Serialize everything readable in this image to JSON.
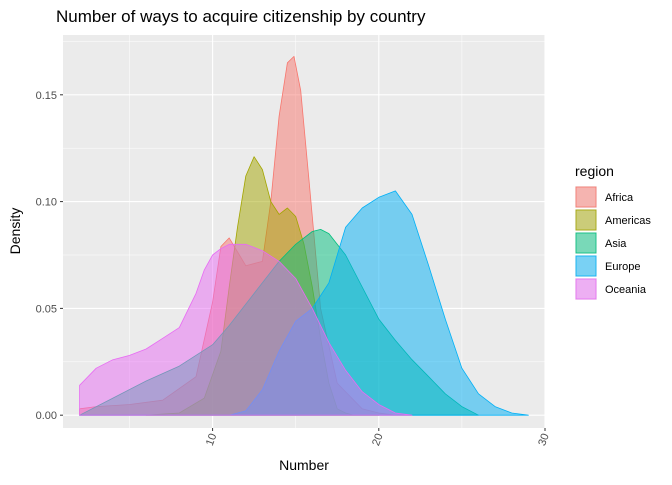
{
  "chart_data": {
    "type": "area",
    "subtype": "density",
    "title": "Number of ways to acquire citizenship by country",
    "xlabel": "Number",
    "ylabel": "Density",
    "xlim": [
      1,
      30
    ],
    "ylim": [
      -0.006,
      0.178
    ],
    "x_ticks": [
      10,
      20,
      30
    ],
    "x_tick_labels": [
      "10",
      "20",
      "30"
    ],
    "y_ticks": [
      0.0,
      0.05,
      0.1,
      0.15
    ],
    "y_tick_labels": [
      "0.00",
      "0.05",
      "0.10",
      "0.15"
    ],
    "grid": true,
    "legend": {
      "title": "region",
      "position": "right"
    },
    "series": [
      {
        "name": "Africa",
        "color": "#F8766D",
        "x": [
          2,
          3,
          5,
          7,
          9,
          10,
          10.5,
          11,
          12,
          13,
          13.5,
          14,
          14.5,
          14.9,
          15.3,
          15.8,
          16.5,
          17.5,
          19,
          20,
          21,
          22
        ],
        "y": [
          0.003,
          0.004,
          0.005,
          0.007,
          0.018,
          0.053,
          0.079,
          0.083,
          0.07,
          0.072,
          0.1,
          0.14,
          0.165,
          0.168,
          0.152,
          0.11,
          0.05,
          0.015,
          0.003,
          0.001,
          0.0,
          0.0
        ]
      },
      {
        "name": "Americas",
        "color": "#A3A500",
        "x": [
          6,
          8,
          9.5,
          10.5,
          11,
          11.5,
          12,
          12.5,
          13,
          13.5,
          14,
          14.5,
          15,
          15.5,
          16,
          16.5,
          17,
          17.5,
          18,
          18.5,
          19,
          20
        ],
        "y": [
          0.0,
          0.001,
          0.008,
          0.03,
          0.06,
          0.088,
          0.112,
          0.121,
          0.115,
          0.1,
          0.094,
          0.097,
          0.093,
          0.08,
          0.06,
          0.036,
          0.015,
          0.003,
          0.001,
          0.0,
          0.0,
          0.0
        ]
      },
      {
        "name": "Asia",
        "color": "#00BF7D",
        "x": [
          2,
          4,
          6,
          8,
          10,
          11,
          12,
          13,
          14,
          15,
          16,
          16.5,
          17,
          18,
          19,
          20,
          21,
          22,
          23,
          24,
          25,
          26
        ],
        "y": [
          0.0,
          0.008,
          0.016,
          0.023,
          0.033,
          0.042,
          0.052,
          0.062,
          0.072,
          0.08,
          0.086,
          0.087,
          0.085,
          0.075,
          0.06,
          0.045,
          0.035,
          0.026,
          0.018,
          0.01,
          0.004,
          0.0
        ]
      },
      {
        "name": "Europe",
        "color": "#00B0F6",
        "x": [
          2,
          5,
          7,
          9,
          10,
          11,
          12,
          13,
          14,
          15,
          16,
          17,
          18,
          19,
          20,
          21,
          22,
          23,
          24,
          25,
          26,
          27,
          28,
          29
        ],
        "y": [
          0.0,
          0.0,
          0.0,
          0.0,
          0.0,
          0.0,
          0.002,
          0.012,
          0.03,
          0.044,
          0.05,
          0.062,
          0.088,
          0.097,
          0.102,
          0.105,
          0.094,
          0.07,
          0.045,
          0.022,
          0.01,
          0.004,
          0.001,
          0.0
        ]
      },
      {
        "name": "Oceania",
        "color": "#E76BF3",
        "x": [
          2,
          3,
          4,
          5,
          6,
          7,
          8,
          9,
          9.5,
          10,
          10.5,
          11,
          12,
          13,
          14,
          15,
          16,
          17,
          18,
          19,
          20,
          21,
          22
        ],
        "y": [
          0.014,
          0.022,
          0.026,
          0.028,
          0.031,
          0.036,
          0.041,
          0.057,
          0.068,
          0.075,
          0.078,
          0.08,
          0.08,
          0.077,
          0.072,
          0.064,
          0.05,
          0.034,
          0.021,
          0.011,
          0.005,
          0.001,
          0.0
        ]
      }
    ]
  }
}
